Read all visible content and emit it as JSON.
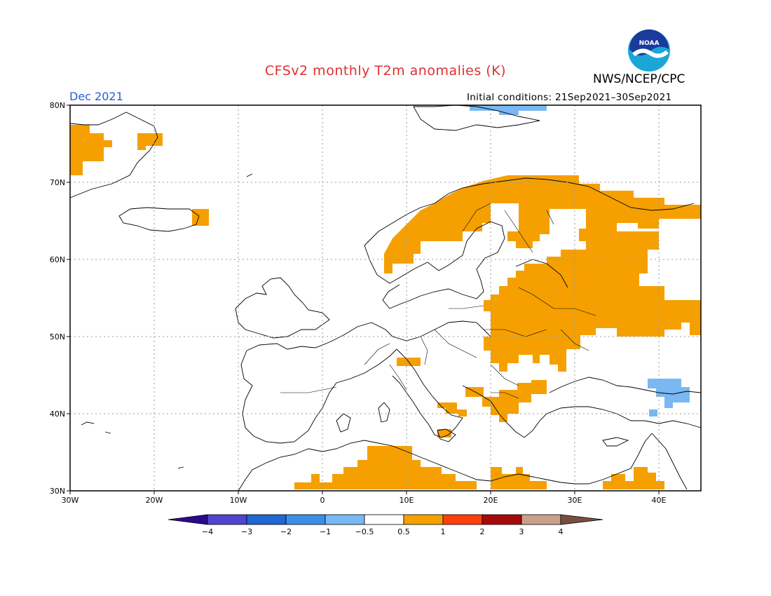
{
  "title": "CFSv2 monthly T2m anomalies (K)",
  "agency": "NWS/NCEP/CPC",
  "logo_text": "NOAA",
  "month": "Dec 2021",
  "initial_conditions": "Initial conditions: 21Sep2021–30Sep2021",
  "map": {
    "lon_range": [
      -30,
      45
    ],
    "lat_range": [
      30,
      80
    ],
    "lat_labels": [
      "80N",
      "70N",
      "60N",
      "50N",
      "40N",
      "30N"
    ],
    "lon_labels": [
      "30W",
      "20W",
      "10W",
      "0",
      "10E",
      "20E",
      "30E",
      "40E"
    ],
    "grid": "dotted"
  },
  "colorbar": {
    "colors": [
      "#2a0a8c",
      "#5244d0",
      "#1f67d1",
      "#3b8ee8",
      "#79b8f2",
      "#ffffff",
      "#f5a000",
      "#ff3f0a",
      "#a80a0a",
      "#c9a08a",
      "#7a4f42"
    ],
    "labels": [
      "−4",
      "−3",
      "−2",
      "−1",
      "−0.5",
      "0.5",
      "1",
      "2",
      "3",
      "4"
    ]
  },
  "colors": {
    "warm": "#f5a000",
    "cool": "#79b8f2"
  }
}
